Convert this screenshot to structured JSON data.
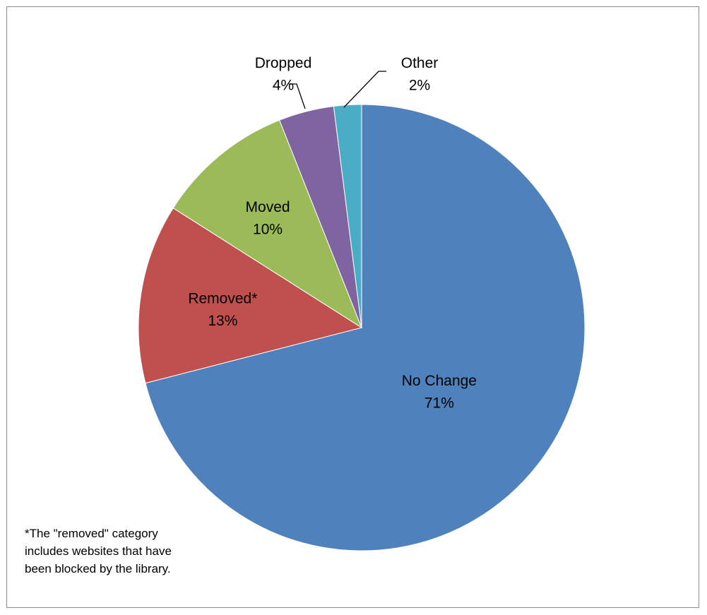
{
  "chart_data": {
    "type": "pie",
    "title": "",
    "slices": [
      {
        "label": "No Change",
        "value": 71,
        "value_label": "71%",
        "color": "#4f81bd"
      },
      {
        "label": "Removed*",
        "value": 13,
        "value_label": "13%",
        "color": "#c0504d"
      },
      {
        "label": "Moved",
        "value": 10,
        "value_label": "10%",
        "color": "#9bbb59"
      },
      {
        "label": "Dropped",
        "value": 4,
        "value_label": "4%",
        "color": "#8064a2"
      },
      {
        "label": "Other",
        "value": 2,
        "value_label": "2%",
        "color": "#4bacc6"
      }
    ],
    "start": "12 o'clock",
    "direction": "clockwise",
    "legend": "none",
    "data_labels": "category and percentage"
  },
  "footnote": {
    "lines": [
      "*The \"removed\" category",
      "includes websites that have",
      "been blocked by the library."
    ]
  }
}
